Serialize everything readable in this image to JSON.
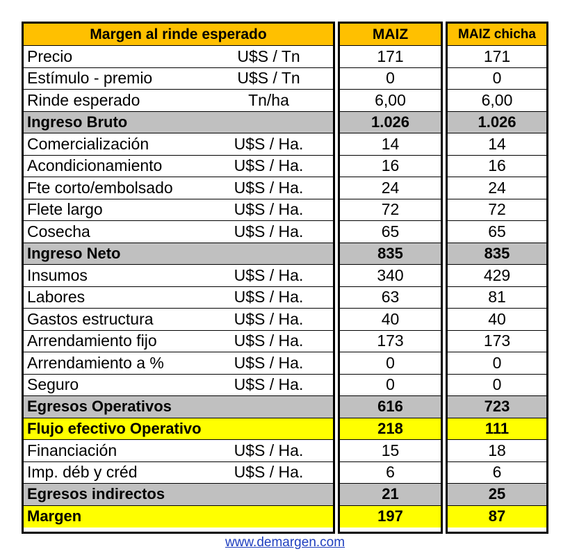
{
  "header": {
    "title": "Margen al rinde esperado",
    "col1": "MAIZ",
    "col2": "MAIZ chicha"
  },
  "rows": [
    {
      "label": "Precio",
      "unit": "U$S / Tn",
      "v1": "171",
      "v2": "171",
      "style": "n"
    },
    {
      "label": "Estímulo - premio",
      "unit": "U$S / Tn",
      "v1": "0",
      "v2": "0",
      "style": "n"
    },
    {
      "label": "Rinde  esperado",
      "unit": "Tn/ha",
      "v1": "6,00",
      "v2": "6,00",
      "style": "n"
    },
    {
      "label": "Ingreso Bruto",
      "unit": "",
      "v1": "1.026",
      "v2": "1.026",
      "style": "g"
    },
    {
      "label": "Comercialización",
      "unit": "U$S / Ha.",
      "v1": "14",
      "v2": "14",
      "style": "n"
    },
    {
      "label": "Acondicionamiento",
      "unit": "U$S / Ha.",
      "v1": "16",
      "v2": "16",
      "style": "n"
    },
    {
      "label": "Fte corto/embolsado",
      "unit": "U$S / Ha.",
      "v1": "24",
      "v2": "24",
      "style": "n"
    },
    {
      "label": "Flete largo",
      "unit": "U$S / Ha.",
      "v1": "72",
      "v2": "72",
      "style": "n"
    },
    {
      "label": "Cosecha",
      "unit": "U$S / Ha.",
      "v1": "65",
      "v2": "65",
      "style": "n"
    },
    {
      "label": "Ingreso Neto",
      "unit": "",
      "v1": "835",
      "v2": "835",
      "style": "g"
    },
    {
      "label": "Insumos",
      "unit": "U$S / Ha.",
      "v1": "340",
      "v2": "429",
      "style": "n"
    },
    {
      "label": "Labores",
      "unit": "U$S / Ha.",
      "v1": "63",
      "v2": "81",
      "style": "n"
    },
    {
      "label": "Gastos estructura",
      "unit": "U$S / Ha.",
      "v1": "40",
      "v2": "40",
      "style": "n"
    },
    {
      "label": "Arrendamiento fijo",
      "unit": "U$S / Ha.",
      "v1": "173",
      "v2": "173",
      "style": "n"
    },
    {
      "label": "Arrendamiento a %",
      "unit": "U$S / Ha.",
      "v1": "0",
      "v2": "0",
      "style": "n"
    },
    {
      "label": "Seguro",
      "unit": "U$S / Ha.",
      "v1": "0",
      "v2": "0",
      "style": "n"
    },
    {
      "label": "Egresos Operativos",
      "unit": "",
      "v1": "616",
      "v2": "723",
      "style": "g"
    },
    {
      "label": "Flujo efectivo Operativo",
      "unit": "",
      "v1": "218",
      "v2": "111",
      "style": "y"
    },
    {
      "label": "Financiación",
      "unit": "U$S / Ha.",
      "v1": "15",
      "v2": "18",
      "style": "n"
    },
    {
      "label": "Imp. déb y créd",
      "unit": "U$S / Ha.",
      "v1": "6",
      "v2": "6",
      "style": "n"
    },
    {
      "label": "Egresos indirectos",
      "unit": "",
      "v1": "21",
      "v2": "25",
      "style": "g"
    },
    {
      "label": "Margen",
      "unit": "",
      "v1": "197",
      "v2": "87",
      "style": "y"
    }
  ],
  "footer": {
    "link_text": "www.demargen.com"
  },
  "colors": {
    "header": "#ffc000",
    "subtotal": "#c0c0c0",
    "highlight": "#ffff00",
    "link": "#1f3fbf"
  }
}
